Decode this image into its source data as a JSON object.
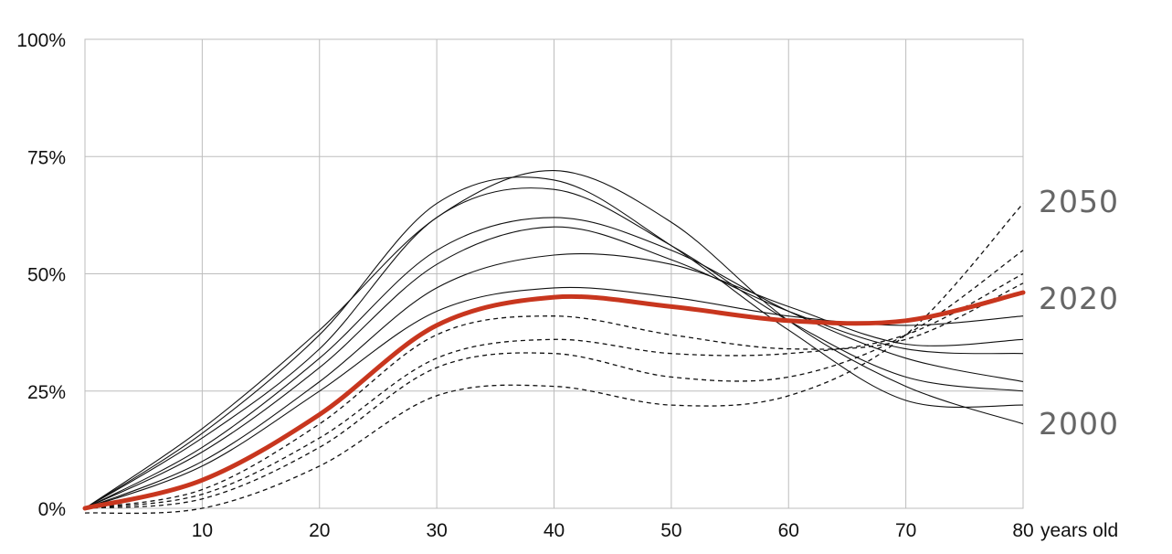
{
  "chart_data": {
    "type": "line",
    "title": "",
    "xlabel": "years old",
    "ylabel": "",
    "xlim": [
      0,
      80
    ],
    "ylim": [
      0,
      100
    ],
    "x_ticks": [
      10,
      20,
      30,
      40,
      50,
      60,
      70,
      80
    ],
    "x_tick_labels": [
      "10",
      "20",
      "30",
      "40",
      "50",
      "60",
      "70",
      "80"
    ],
    "y_ticks": [
      0,
      25,
      50,
      75,
      100
    ],
    "y_tick_labels": [
      "0%",
      "25%",
      "50%",
      "75%",
      "100%"
    ],
    "grid": true,
    "series_labels": [
      "2050",
      "2020",
      "2000"
    ],
    "highlight_color": "#c8361e",
    "line_color": "#111111",
    "series": [
      {
        "style": "solid",
        "x": [
          0,
          10,
          20,
          30,
          40,
          50,
          60,
          70,
          80
        ],
        "y": [
          0,
          17,
          38,
          62,
          72,
          61,
          40,
          26,
          18
        ]
      },
      {
        "style": "solid",
        "x": [
          0,
          10,
          20,
          30,
          40,
          50,
          60,
          70,
          80
        ],
        "y": [
          0,
          16,
          37,
          65,
          70,
          56,
          38,
          23,
          22
        ]
      },
      {
        "style": "solid",
        "x": [
          0,
          10,
          20,
          30,
          40,
          50,
          60,
          70,
          80
        ],
        "y": [
          0,
          15,
          34,
          62,
          68,
          56,
          40,
          28,
          25
        ]
      },
      {
        "style": "solid",
        "x": [
          0,
          10,
          20,
          30,
          40,
          50,
          60,
          70,
          80
        ],
        "y": [
          0,
          13,
          32,
          55,
          62,
          55,
          42,
          32,
          27
        ]
      },
      {
        "style": "solid",
        "x": [
          0,
          10,
          20,
          30,
          40,
          50,
          60,
          70,
          80
        ],
        "y": [
          0,
          12,
          30,
          52,
          60,
          53,
          42,
          34,
          33
        ]
      },
      {
        "style": "solid",
        "x": [
          0,
          10,
          20,
          30,
          40,
          50,
          60,
          70,
          80
        ],
        "y": [
          0,
          10,
          27,
          47,
          54,
          52,
          43,
          35,
          36
        ]
      },
      {
        "style": "solid",
        "x": [
          0,
          10,
          20,
          30,
          40,
          50,
          60,
          70,
          80
        ],
        "y": [
          0,
          9,
          25,
          42,
          47,
          45,
          41,
          39,
          41
        ]
      },
      {
        "style": "highlight",
        "x": [
          0,
          10,
          20,
          30,
          40,
          50,
          60,
          70,
          80
        ],
        "y": [
          0,
          6,
          20,
          39,
          45,
          43,
          40,
          40,
          46
        ]
      },
      {
        "style": "dashed",
        "x": [
          0,
          10,
          20,
          30,
          40,
          50,
          60,
          70,
          80
        ],
        "y": [
          0,
          4,
          18,
          37,
          41,
          37,
          34,
          36,
          48
        ]
      },
      {
        "style": "dashed",
        "x": [
          0,
          10,
          20,
          30,
          40,
          50,
          60,
          70,
          80
        ],
        "y": [
          0,
          3,
          15,
          32,
          36,
          33,
          33,
          37,
          50
        ]
      },
      {
        "style": "dashed",
        "x": [
          0,
          10,
          20,
          30,
          40,
          50,
          60,
          70,
          80
        ],
        "y": [
          0,
          2,
          13,
          30,
          33,
          28,
          28,
          37,
          55
        ]
      },
      {
        "style": "dashed",
        "x": [
          0,
          10,
          20,
          30,
          40,
          50,
          60,
          70,
          80
        ],
        "y": [
          -1,
          0,
          9,
          24,
          26,
          22,
          24,
          37,
          65
        ]
      }
    ]
  }
}
